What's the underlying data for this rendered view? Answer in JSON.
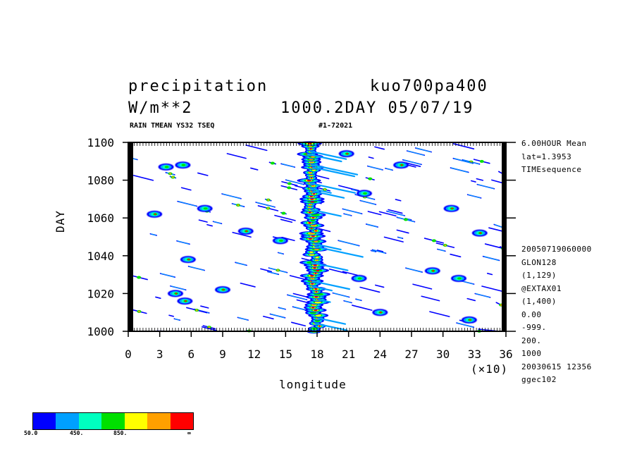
{
  "header": {
    "title_left": "precipitation",
    "title_right": "kuo700pa400",
    "unit": "W/m**2",
    "subtitle_right": "1000.2DAY 05/07/19",
    "small_left": "RAIN TMEAN YS32 TSEQ",
    "small_right": "#1-72021"
  },
  "side_info": {
    "top": [
      "6.00HOUR Mean",
      "lat=1.3953",
      "TIMEsequence"
    ],
    "bottom": [
      "20050719060000",
      "GLON128",
      "(1,129)",
      "@EXTAX01",
      "(1,400)",
      "0.00",
      "-999.",
      "200.",
      "1000",
      "20030615  12356",
      "ggec102"
    ]
  },
  "colorbar": {
    "colors": [
      "#0000ff",
      "#00a0ff",
      "#00ffc0",
      "#00e000",
      "#ffff00",
      "#ffa000",
      "#ff0000"
    ],
    "labels": [
      "50.0",
      "450.",
      "850.",
      "∞"
    ]
  },
  "chart_data": {
    "type": "heatmap",
    "title": "precipitation",
    "xlabel": "longitude",
    "ylabel": "DAY",
    "x_multiplier": "(×10)",
    "xlim": [
      0,
      36
    ],
    "ylim": [
      1000,
      1100
    ],
    "x_ticks": [
      0,
      3,
      6,
      9,
      12,
      15,
      18,
      21,
      24,
      27,
      30,
      33,
      36
    ],
    "y_ticks": [
      1000,
      1020,
      1040,
      1060,
      1080,
      1100
    ],
    "contour_levels": [
      50,
      250,
      450,
      650,
      850,
      1050,
      1250
    ],
    "features": [
      {
        "name": "main-rain-band",
        "x_start": 18.0,
        "x_end": 17.3,
        "y_start": 1000,
        "y_end": 1100,
        "peak": "red"
      }
    ]
  }
}
